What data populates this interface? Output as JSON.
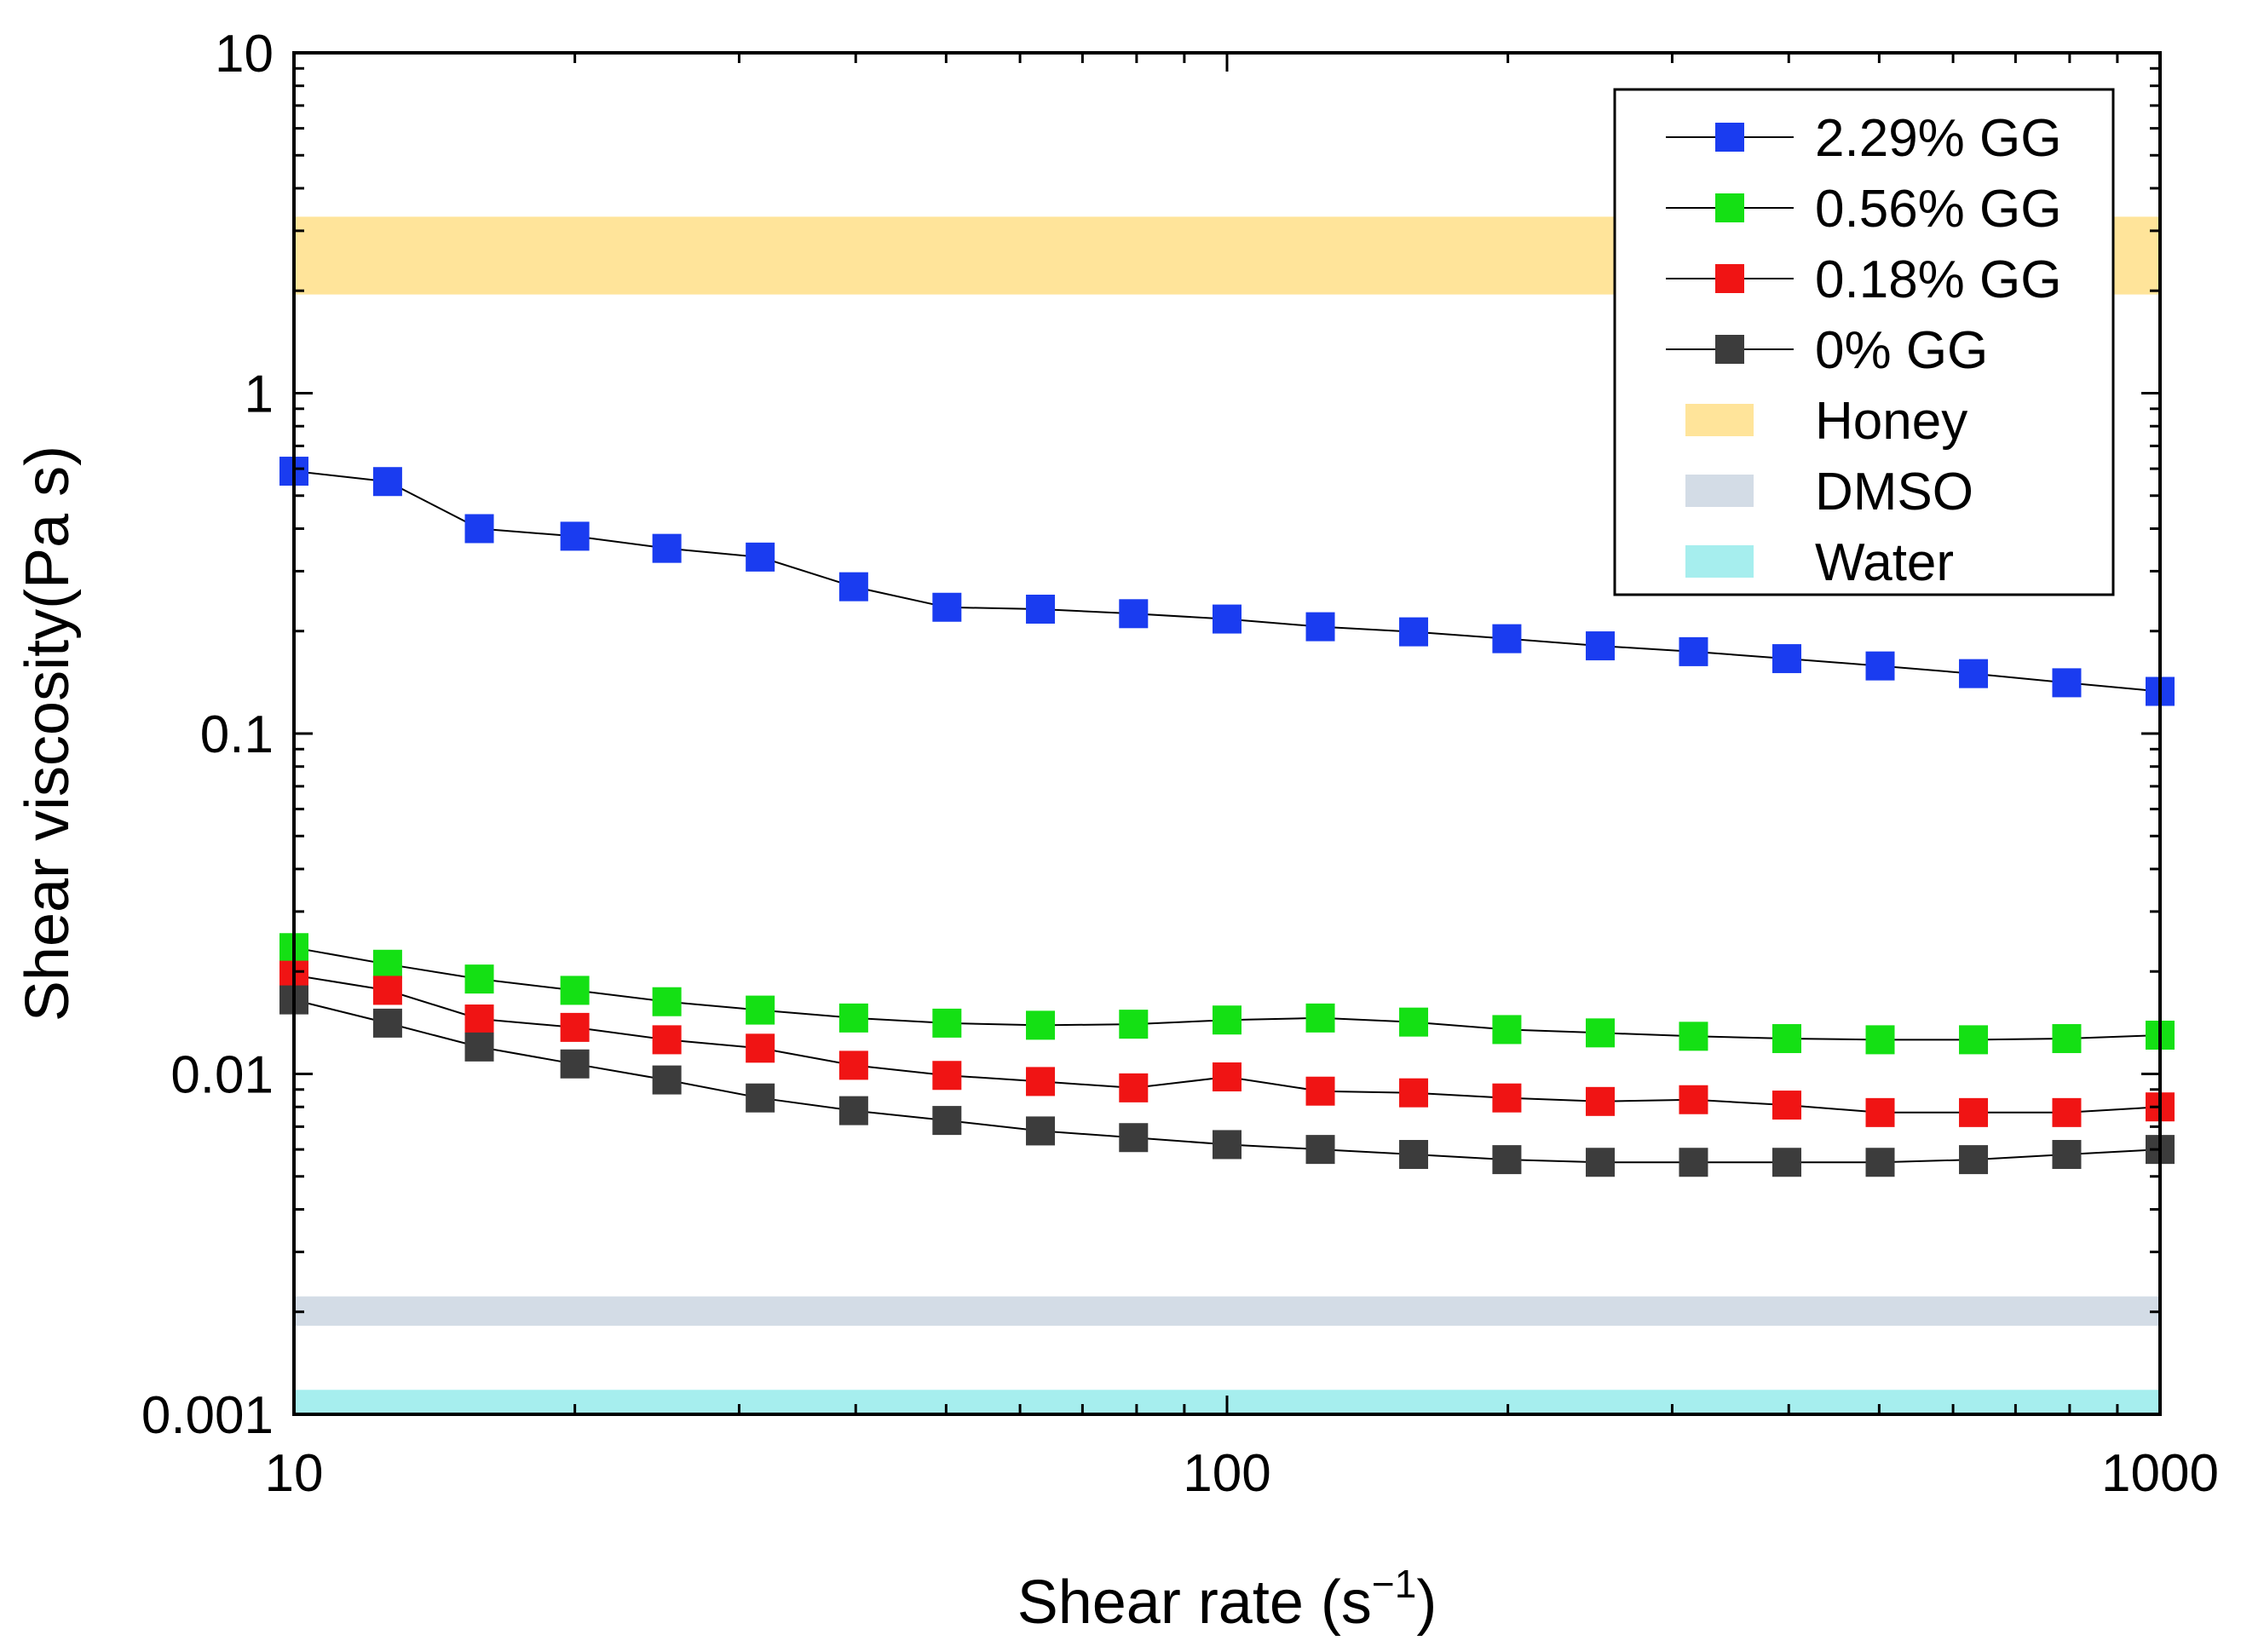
{
  "chart_data": {
    "type": "scatter",
    "xscale": "log",
    "yscale": "log",
    "xlim": [
      10,
      1000
    ],
    "ylim": [
      0.001,
      10
    ],
    "xlabel": "Shear rate (s",
    "xlabel_sup": "−1",
    "xlabel_close": ")",
    "ylabel": "Shear viscosity(Pa s)",
    "xticks": [
      {
        "value": 10,
        "label": "10"
      },
      {
        "value": 100,
        "label": "100"
      },
      {
        "value": 1000,
        "label": "1000"
      }
    ],
    "yticks": [
      {
        "value": 0.001,
        "label": "0.001"
      },
      {
        "value": 0.01,
        "label": "0.01"
      },
      {
        "value": 0.1,
        "label": "0.1"
      },
      {
        "value": 1,
        "label": "1"
      },
      {
        "value": 10,
        "label": "10"
      }
    ],
    "x": [
      10,
      12.6,
      15.8,
      20,
      25.1,
      31.6,
      39.8,
      50.1,
      63.1,
      79.4,
      100,
      125.9,
      158.5,
      199.5,
      251.2,
      316.2,
      398.1,
      501.2,
      631,
      794.3,
      1000
    ],
    "series": [
      {
        "name": "2.29% GG",
        "color": "#1a3cf0",
        "values": [
          0.59,
          0.55,
          0.4,
          0.38,
          0.35,
          0.33,
          0.27,
          0.235,
          0.232,
          0.225,
          0.217,
          0.206,
          0.199,
          0.19,
          0.181,
          0.174,
          0.166,
          0.158,
          0.15,
          0.141,
          0.133
        ]
      },
      {
        "name": "0.56% GG",
        "color": "#14e014",
        "values": [
          0.0235,
          0.021,
          0.019,
          0.0176,
          0.0163,
          0.0154,
          0.0146,
          0.0141,
          0.0139,
          0.014,
          0.0144,
          0.0146,
          0.0142,
          0.0135,
          0.0132,
          0.0129,
          0.0127,
          0.0126,
          0.0126,
          0.0127,
          0.013
        ]
      },
      {
        "name": "0.18% GG",
        "color": "#f01414",
        "values": [
          0.0195,
          0.0176,
          0.0145,
          0.0137,
          0.0126,
          0.0119,
          0.0106,
          0.0099,
          0.0095,
          0.0091,
          0.0098,
          0.0089,
          0.0088,
          0.0085,
          0.0083,
          0.0084,
          0.0081,
          0.0077,
          0.0077,
          0.0077,
          0.008
        ]
      },
      {
        "name": "0% GG",
        "color": "#3c3c3c",
        "values": [
          0.0165,
          0.0141,
          0.012,
          0.0107,
          0.0096,
          0.0085,
          0.0078,
          0.0073,
          0.0068,
          0.0065,
          0.0062,
          0.006,
          0.0058,
          0.0056,
          0.0055,
          0.0055,
          0.0055,
          0.0055,
          0.0056,
          0.0058,
          0.006
        ]
      }
    ],
    "bands": [
      {
        "name": "Honey",
        "color": "#ffe49a",
        "y_range": [
          1.95,
          3.3
        ]
      },
      {
        "name": "DMSO",
        "color": "#d3dce6",
        "y_range": [
          0.00182,
          0.00222
        ]
      },
      {
        "name": "Water",
        "color": "#a6eeee",
        "y_range": [
          0.00101,
          0.00118
        ]
      }
    ],
    "legend_position": "top-right"
  }
}
